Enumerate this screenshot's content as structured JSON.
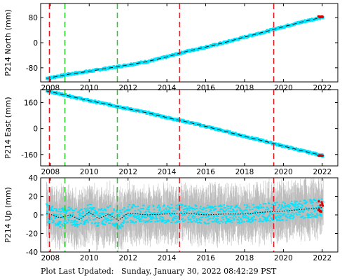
{
  "footer": {
    "label": "Plot Last Updated:",
    "timestamp": "Sunday, January 30, 2022 08:42:29 PST"
  },
  "colors": {
    "data": "#00e5ff",
    "error_bars": "#bbbbbb",
    "model_line": "#000000",
    "recent": "#dd0000",
    "event_red": "#e8141c",
    "event_green": "#2ec72e"
  },
  "chart_data": [
    {
      "type": "scatter",
      "ylabel": "P214 North (mm)",
      "xlim": [
        2007.5,
        2022.8
      ],
      "ylim": [
        -125,
        125
      ],
      "xticks": [
        2008,
        2010,
        2012,
        2014,
        2016,
        2018,
        2020,
        2022
      ],
      "yticks": [
        80,
        0,
        -80
      ],
      "series": [
        {
          "x": [
            2007.8,
            2009,
            2010,
            2011,
            2012,
            2013,
            2014,
            2015,
            2016,
            2017,
            2018,
            2019,
            2020,
            2021,
            2022.05
          ],
          "y": [
            -114,
            -100,
            -91,
            -81,
            -71,
            -60,
            -45,
            -28,
            -14,
            1,
            18,
            34,
            51,
            67,
            82
          ]
        }
      ],
      "vlines": [
        {
          "x": 2007.95,
          "color": "red"
        },
        {
          "x": 2008.75,
          "color": "green"
        },
        {
          "x": 2011.45,
          "color": "green"
        },
        {
          "x": 2014.65,
          "color": "red"
        },
        {
          "x": 2019.5,
          "color": "red"
        }
      ]
    },
    {
      "type": "scatter",
      "ylabel": "P214 East (mm)",
      "xlim": [
        2007.5,
        2022.8
      ],
      "ylim": [
        -230,
        240
      ],
      "xticks": [
        2008,
        2010,
        2012,
        2014,
        2016,
        2018,
        2020,
        2022
      ],
      "yticks": [
        160,
        0,
        -160
      ],
      "series": [
        {
          "x": [
            2007.8,
            2009,
            2010,
            2011,
            2012,
            2013,
            2014,
            2015,
            2016,
            2017,
            2018,
            2019,
            2020,
            2021,
            2022.05
          ],
          "y": [
            232,
            200,
            172,
            148,
            122,
            97,
            68,
            42,
            13,
            -17,
            -48,
            -77,
            -108,
            -138,
            -167
          ]
        }
      ],
      "vlines": [
        {
          "x": 2007.95,
          "color": "red"
        },
        {
          "x": 2008.75,
          "color": "green"
        },
        {
          "x": 2011.45,
          "color": "green"
        },
        {
          "x": 2014.65,
          "color": "red"
        },
        {
          "x": 2019.5,
          "color": "red"
        }
      ]
    },
    {
      "type": "scatter",
      "ylabel": "P214 Up (mm)",
      "xlim": [
        2007.5,
        2022.8
      ],
      "ylim": [
        -40,
        40
      ],
      "xticks": [
        2008,
        2010,
        2012,
        2014,
        2016,
        2018,
        2020,
        2022
      ],
      "yticks": [
        40,
        20,
        0,
        -20,
        -40
      ],
      "series": [
        {
          "x": [
            2007.8,
            2008.5,
            2009,
            2009.5,
            2010,
            2010.5,
            2011,
            2011.5,
            2012,
            2013,
            2014,
            2015,
            2016,
            2017,
            2018,
            2019,
            2020,
            2021,
            2022.05
          ],
          "y": [
            2,
            -3,
            0,
            -5,
            3,
            -4,
            1,
            -6,
            2,
            0,
            1,
            2,
            0,
            1,
            1,
            3,
            4,
            6,
            8
          ],
          "spread": 10,
          "error": 25
        }
      ],
      "vlines": [
        {
          "x": 2007.95,
          "color": "red"
        },
        {
          "x": 2008.75,
          "color": "green"
        },
        {
          "x": 2011.45,
          "color": "green"
        },
        {
          "x": 2014.65,
          "color": "red"
        },
        {
          "x": 2019.5,
          "color": "red"
        }
      ]
    }
  ]
}
